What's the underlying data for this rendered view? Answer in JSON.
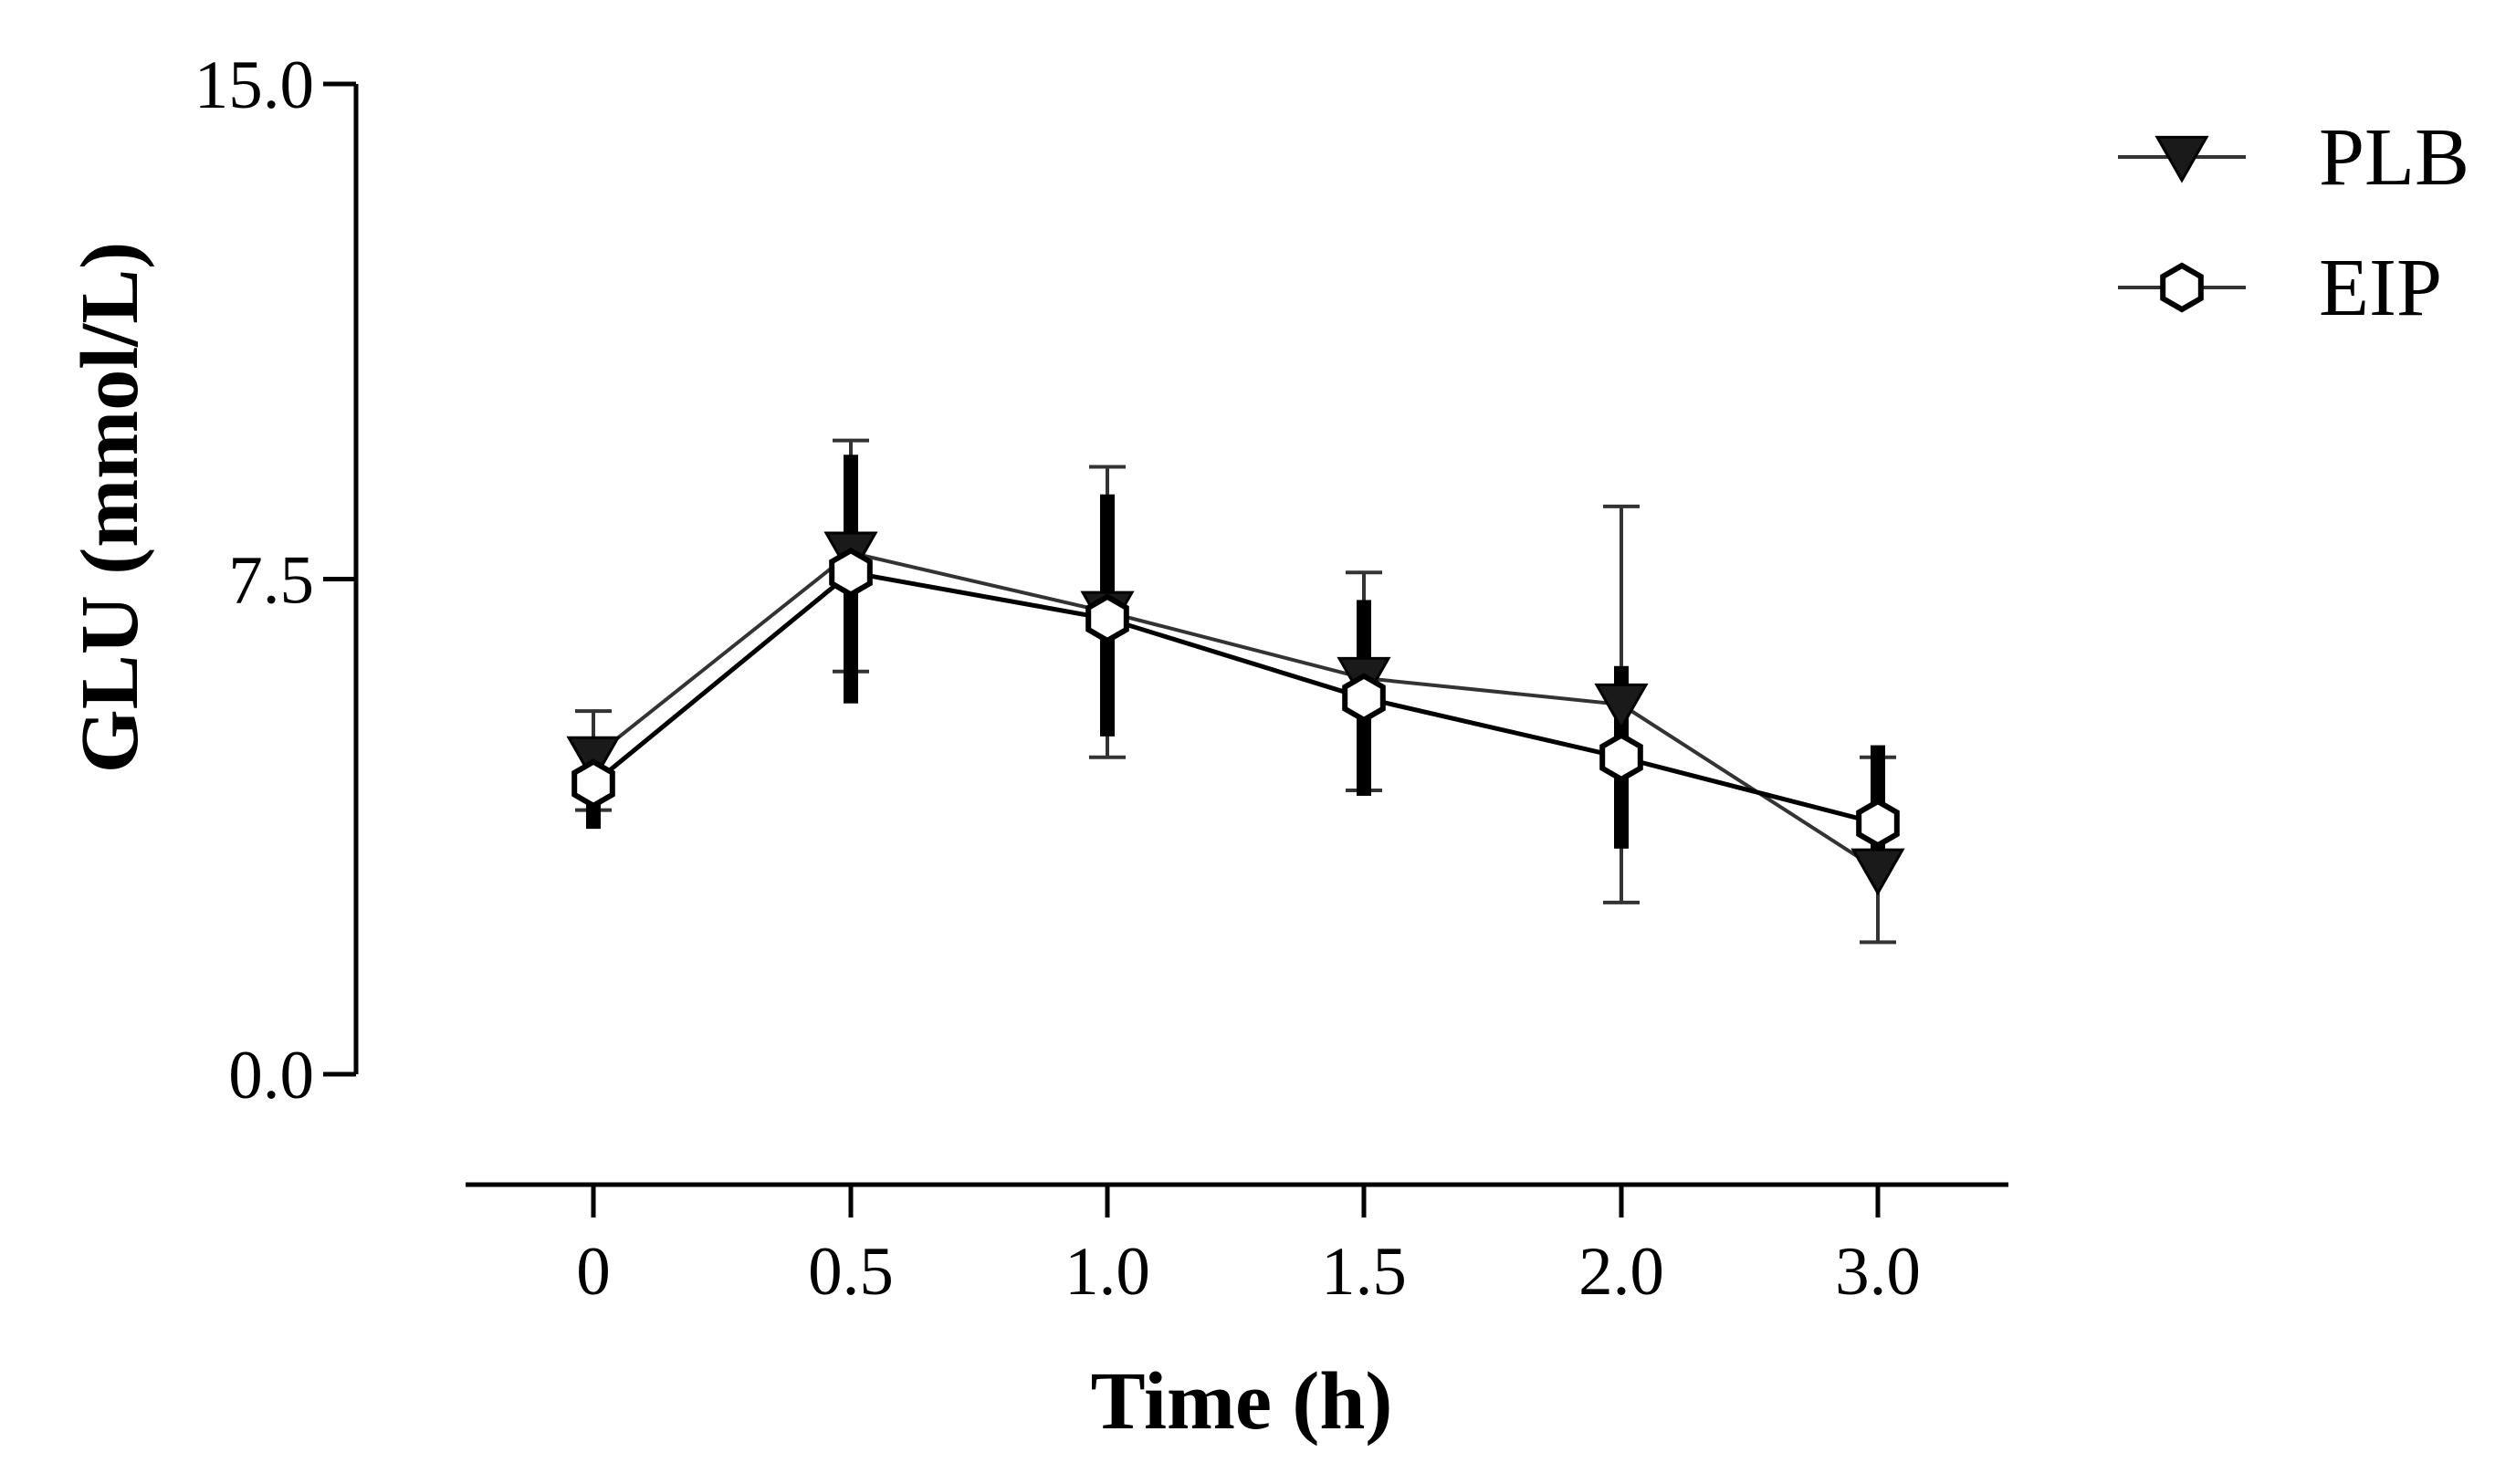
{
  "chart_data": {
    "type": "line",
    "title": "",
    "xlabel": "Time (h)",
    "ylabel": "GLU (mmol/L)",
    "categories": [
      "0",
      "0.5",
      "1.0",
      "1.5",
      "2.0",
      "3.0"
    ],
    "yticks": [
      "0.0",
      "7.5",
      "15.0"
    ],
    "ylim": [
      0,
      15
    ],
    "legend_position": "top-right",
    "series": [
      {
        "name": "PLB",
        "marker": "filled-down-triangle",
        "color": "#000000",
        "values": [
          4.8,
          7.9,
          7.0,
          6.0,
          5.6,
          3.1
        ],
        "error_lower": [
          4.0,
          6.1,
          4.8,
          4.3,
          2.6,
          2.0
        ],
        "error_upper": [
          5.5,
          9.6,
          9.2,
          7.6,
          8.6,
          4.8
        ]
      },
      {
        "name": "EIP",
        "marker": "open-hexagon",
        "color": "#000000",
        "values": [
          4.4,
          7.6,
          6.9,
          5.7,
          4.8,
          3.8
        ],
        "error_lower": [
          3.8,
          5.7,
          5.2,
          4.3,
          3.5,
          3.1
        ],
        "error_upper": [
          5.0,
          9.3,
          8.7,
          7.1,
          6.1,
          4.9
        ]
      }
    ]
  }
}
